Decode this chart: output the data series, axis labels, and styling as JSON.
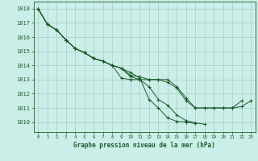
{
  "xlabel": "Graphe pression niveau de la mer (hPa)",
  "bg_color": "#cceee8",
  "grid_color": "#aacccc",
  "line_color": "#1a5c2a",
  "text_color": "#1a5c2a",
  "ylim": [
    1009.3,
    1018.5
  ],
  "xlim": [
    -0.5,
    23.5
  ],
  "yticks": [
    1010,
    1011,
    1012,
    1013,
    1014,
    1015,
    1016,
    1017,
    1018
  ],
  "xticks": [
    0,
    1,
    2,
    3,
    4,
    5,
    6,
    7,
    8,
    9,
    10,
    11,
    12,
    13,
    14,
    15,
    16,
    17,
    18,
    19,
    20,
    21,
    22,
    23
  ],
  "series": [
    [
      1018.0,
      1016.9,
      1016.5,
      1015.8,
      1015.2,
      1014.9,
      1014.5,
      1014.3,
      1014.0,
      1013.1,
      1013.0,
      1013.0,
      1013.0,
      1013.0,
      1013.0,
      1012.5,
      1011.7,
      1011.0,
      1011.0,
      1011.0,
      1011.0,
      1011.0,
      1011.5,
      null
    ],
    [
      1018.0,
      1016.9,
      1016.5,
      1015.8,
      1015.2,
      1014.9,
      1014.5,
      1014.3,
      1014.0,
      1013.8,
      1013.5,
      1013.1,
      1011.6,
      1011.0,
      1010.3,
      1010.05,
      1010.0,
      1009.9,
      null,
      null,
      null,
      null,
      null,
      null
    ],
    [
      1018.0,
      1016.9,
      1016.5,
      1015.8,
      1015.2,
      1014.9,
      1014.5,
      1014.3,
      1014.0,
      1013.8,
      1013.2,
      1013.0,
      1012.5,
      1011.6,
      1011.2,
      1010.5,
      1010.1,
      1009.95,
      1009.85,
      null,
      null,
      null,
      null,
      null
    ],
    [
      1018.0,
      1016.9,
      1016.5,
      1015.8,
      1015.2,
      1014.9,
      1014.5,
      1014.3,
      1014.0,
      1013.8,
      1013.3,
      1013.2,
      1013.0,
      1013.0,
      1012.8,
      1012.4,
      1011.5,
      1011.0,
      1011.0,
      1011.0,
      1011.0,
      1011.0,
      1011.1,
      1011.5
    ]
  ]
}
